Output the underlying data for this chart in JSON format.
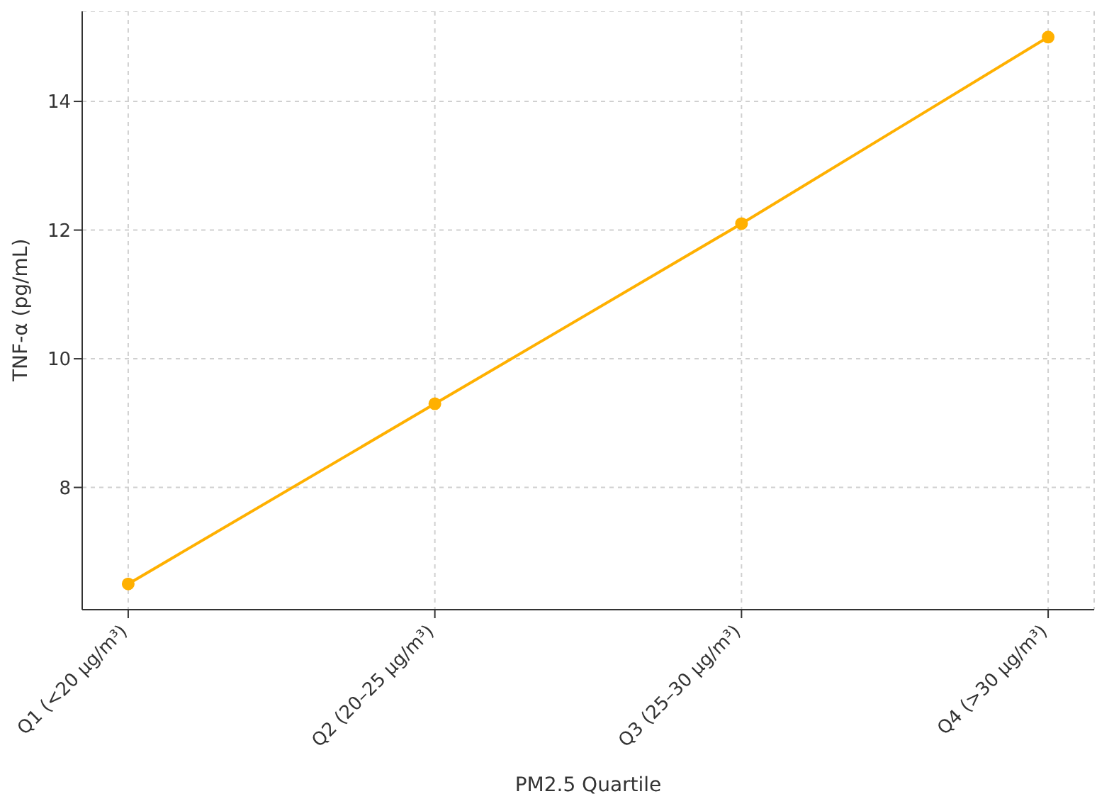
{
  "chart_data": {
    "type": "line",
    "xlabel": "PM2.5 Quartile",
    "ylabel": "TNF-α (pg/mL)",
    "categories": [
      "Q1 (<20 µg/m³)",
      "Q2 (20–25 µg/m³)",
      "Q3 (25–30 µg/m³)",
      "Q4 (>30 µg/m³)"
    ],
    "series": [
      {
        "color": "#ffb000",
        "values": [
          6.5,
          9.3,
          12.1,
          15.0
        ]
      }
    ],
    "ylim": [
      6.1,
      15.4
    ],
    "yticks": [
      8,
      10,
      12,
      14
    ],
    "grid": true,
    "marker": "circle",
    "line_style": "solid"
  }
}
